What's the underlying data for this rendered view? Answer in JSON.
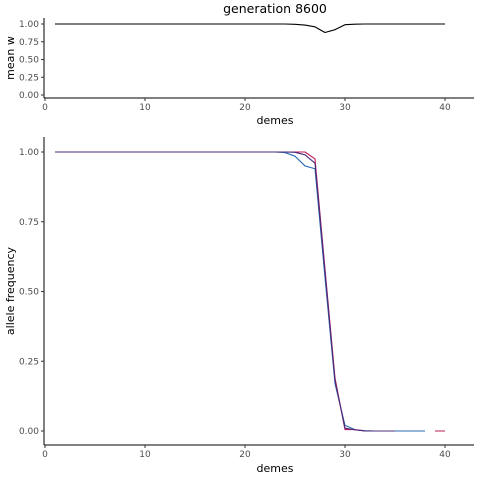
{
  "chart_data": [
    {
      "type": "line",
      "title": "generation 8600",
      "xlabel": "demes",
      "ylabel": "mean w",
      "xlim": [
        0,
        42
      ],
      "ylim": [
        0,
        1
      ],
      "xticks": [
        0,
        10,
        20,
        30,
        40
      ],
      "yticks": [
        0.0,
        0.25,
        0.5,
        0.75,
        1.0
      ],
      "ytick_labels": [
        "0.00",
        "0.25",
        "0.50",
        "0.75",
        "1.00"
      ],
      "grid": false,
      "series": [
        {
          "color": "#000000",
          "x": [
            1,
            2,
            3,
            4,
            5,
            6,
            7,
            8,
            9,
            10,
            11,
            12,
            13,
            14,
            15,
            16,
            17,
            18,
            19,
            20,
            21,
            22,
            23,
            24,
            25,
            26,
            27,
            28,
            29,
            30,
            31,
            32,
            33,
            34,
            35,
            36,
            37,
            38,
            39,
            40
          ],
          "y": [
            1,
            1,
            1,
            1,
            1,
            1,
            1,
            1,
            1,
            1,
            1,
            1,
            1,
            1,
            1,
            1,
            1,
            1,
            1,
            1,
            1,
            1,
            1,
            1,
            0.995,
            0.985,
            0.96,
            0.88,
            0.92,
            0.99,
            0.998,
            1,
            1,
            1,
            1,
            1,
            1,
            1,
            1,
            1
          ]
        }
      ]
    },
    {
      "type": "line",
      "title": "",
      "xlabel": "demes",
      "ylabel": "allele frequency",
      "xlim": [
        0,
        42
      ],
      "ylim": [
        0,
        1
      ],
      "xticks": [
        0,
        10,
        20,
        30,
        40
      ],
      "yticks": [
        0.0,
        0.25,
        0.5,
        0.75,
        1.0
      ],
      "ytick_labels": [
        "0.00",
        "0.25",
        "0.50",
        "0.75",
        "1.00"
      ],
      "grid": false,
      "series": [
        {
          "color": "#2c6bb5",
          "x": [
            1,
            2,
            3,
            4,
            5,
            6,
            7,
            8,
            9,
            10,
            11,
            12,
            13,
            14,
            15,
            16,
            17,
            18,
            19,
            20,
            21,
            22,
            23,
            24,
            25,
            26,
            27,
            28,
            29,
            30,
            31,
            32,
            33,
            34,
            35,
            36,
            37,
            38
          ],
          "y": [
            1,
            1,
            1,
            1,
            1,
            1,
            1,
            1,
            1,
            1,
            1,
            1,
            1,
            1,
            1,
            1,
            1,
            1,
            1,
            1,
            1,
            1,
            1,
            0.998,
            0.985,
            0.95,
            0.94,
            0.55,
            0.17,
            0.02,
            0.005,
            0.001,
            0,
            0,
            0,
            0,
            0,
            0
          ]
        },
        {
          "color": "#c2185b",
          "x": [
            1,
            2,
            3,
            4,
            5,
            6,
            7,
            8,
            9,
            10,
            11,
            12,
            13,
            14,
            15,
            16,
            17,
            18,
            19,
            20,
            21,
            22,
            23,
            24,
            25,
            26,
            27,
            28,
            29,
            30,
            31,
            32,
            33,
            34,
            35,
            36,
            37,
            38,
            39,
            40
          ],
          "y": [
            1,
            1,
            1,
            1,
            1,
            1,
            1,
            1,
            1,
            1,
            1,
            1,
            1,
            1,
            1,
            1,
            1,
            1,
            1,
            1,
            1,
            1,
            1,
            1,
            1,
            1,
            0.975,
            0.58,
            0.19,
            0.005,
            0.005,
            0,
            0,
            0,
            0,
            null,
            null,
            null,
            0,
            0
          ]
        },
        {
          "color": "#4a2c7a",
          "x": [
            1,
            2,
            3,
            4,
            5,
            6,
            7,
            8,
            9,
            10,
            11,
            12,
            13,
            14,
            15,
            16,
            17,
            18,
            19,
            20,
            21,
            22,
            23,
            24,
            25,
            26,
            27,
            28,
            29,
            30,
            31,
            32,
            33,
            34,
            35
          ],
          "y": [
            1,
            1,
            1,
            1,
            1,
            1,
            1,
            1,
            1,
            1,
            1,
            1,
            1,
            1,
            1,
            1,
            1,
            1,
            1,
            1,
            1,
            1,
            1,
            1,
            0.999,
            0.99,
            0.96,
            0.57,
            0.18,
            0.01,
            0.004,
            0,
            0,
            0,
            0
          ]
        }
      ]
    }
  ]
}
